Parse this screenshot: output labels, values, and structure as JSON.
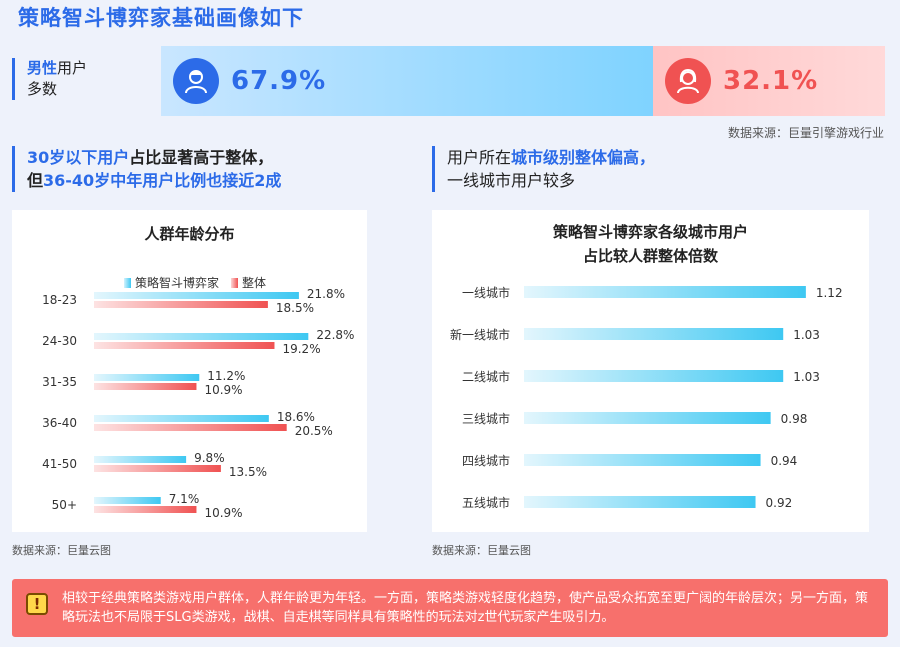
{
  "page_title": "策略智斗博弈家基础画像如下",
  "gender": {
    "label_bold": "男性",
    "label_rest": "用户",
    "label_line2": "多数",
    "male_pct": "67.9%",
    "male_share": 0.679,
    "female_pct": "32.1%",
    "female_share": 0.321,
    "male_icon": "male-user-icon",
    "female_icon": "female-user-icon"
  },
  "source_top": "数据来源：巨量引擎游戏行业",
  "insight_left": {
    "line1_hl": "30岁以下用户",
    "line1_rest": "占比显著高于整体，",
    "line2_pre": "但",
    "line2_hl": "36-40岁中年用户比例也接近2成"
  },
  "insight_right": {
    "line1_pre": "用户所在",
    "line1_hl": "城市级别整体偏高，",
    "line2": "一线城市用户较多"
  },
  "age_chart": {
    "title": "人群年龄分布",
    "legend": [
      "策略智斗博弈家",
      "整体"
    ],
    "source": "数据来源：巨量云图"
  },
  "city_chart": {
    "title_line1": "策略智斗博弈家各级城市用户",
    "title_line2": "占比较人群整体倍数",
    "source": "数据来源：巨量云图"
  },
  "colors": {
    "accent": "#2c6be8",
    "series_blue": "#3ec8f2",
    "series_red": "#f05252",
    "footer_bg": "#f7706c"
  },
  "footer": {
    "icon": "warning-icon",
    "text": "相较于经典策略类游戏用户群体，人群年龄更为年轻。一方面，策略类游戏轻度化趋势，使产品受众拓宽至更广阔的年龄层次；另一方面，策略玩法也不局限于SLG类游戏，战棋、自走棋等同样具有策略性的玩法对z世代玩家产生吸引力。"
  },
  "chart_data": [
    {
      "type": "bar",
      "orientation": "horizontal",
      "title": "人群年龄分布",
      "categories": [
        "18-23",
        "24-30",
        "31-35",
        "36-40",
        "41-50",
        "50+"
      ],
      "series": [
        {
          "name": "策略智斗博弈家",
          "values": [
            21.8,
            22.8,
            11.2,
            18.6,
            9.8,
            7.1
          ],
          "labels": [
            "21.8%",
            "22.8%",
            "11.2%",
            "18.6%",
            "9.8%",
            "7.1%"
          ]
        },
        {
          "name": "整体",
          "values": [
            18.5,
            19.2,
            10.9,
            20.5,
            13.5,
            10.9
          ],
          "labels": [
            "18.5%",
            "19.2%",
            "10.9%",
            "20.5%",
            "13.5%",
            "10.9%"
          ]
        }
      ],
      "xlim": [
        0,
        25
      ],
      "grid": false,
      "legend": "top"
    },
    {
      "type": "bar",
      "orientation": "horizontal",
      "title": "策略智斗博弈家各级城市用户占比较人群整体倍数",
      "categories": [
        "一线城市",
        "新一线城市",
        "二线城市",
        "三线城市",
        "四线城市",
        "五线城市"
      ],
      "values": [
        1.12,
        1.03,
        1.03,
        0.98,
        0.94,
        0.92
      ],
      "labels": [
        "1.12",
        "1.03",
        "1.03",
        "0.98",
        "0.94",
        "0.92"
      ],
      "xlim": [
        0,
        1.2
      ],
      "grid": false
    }
  ]
}
